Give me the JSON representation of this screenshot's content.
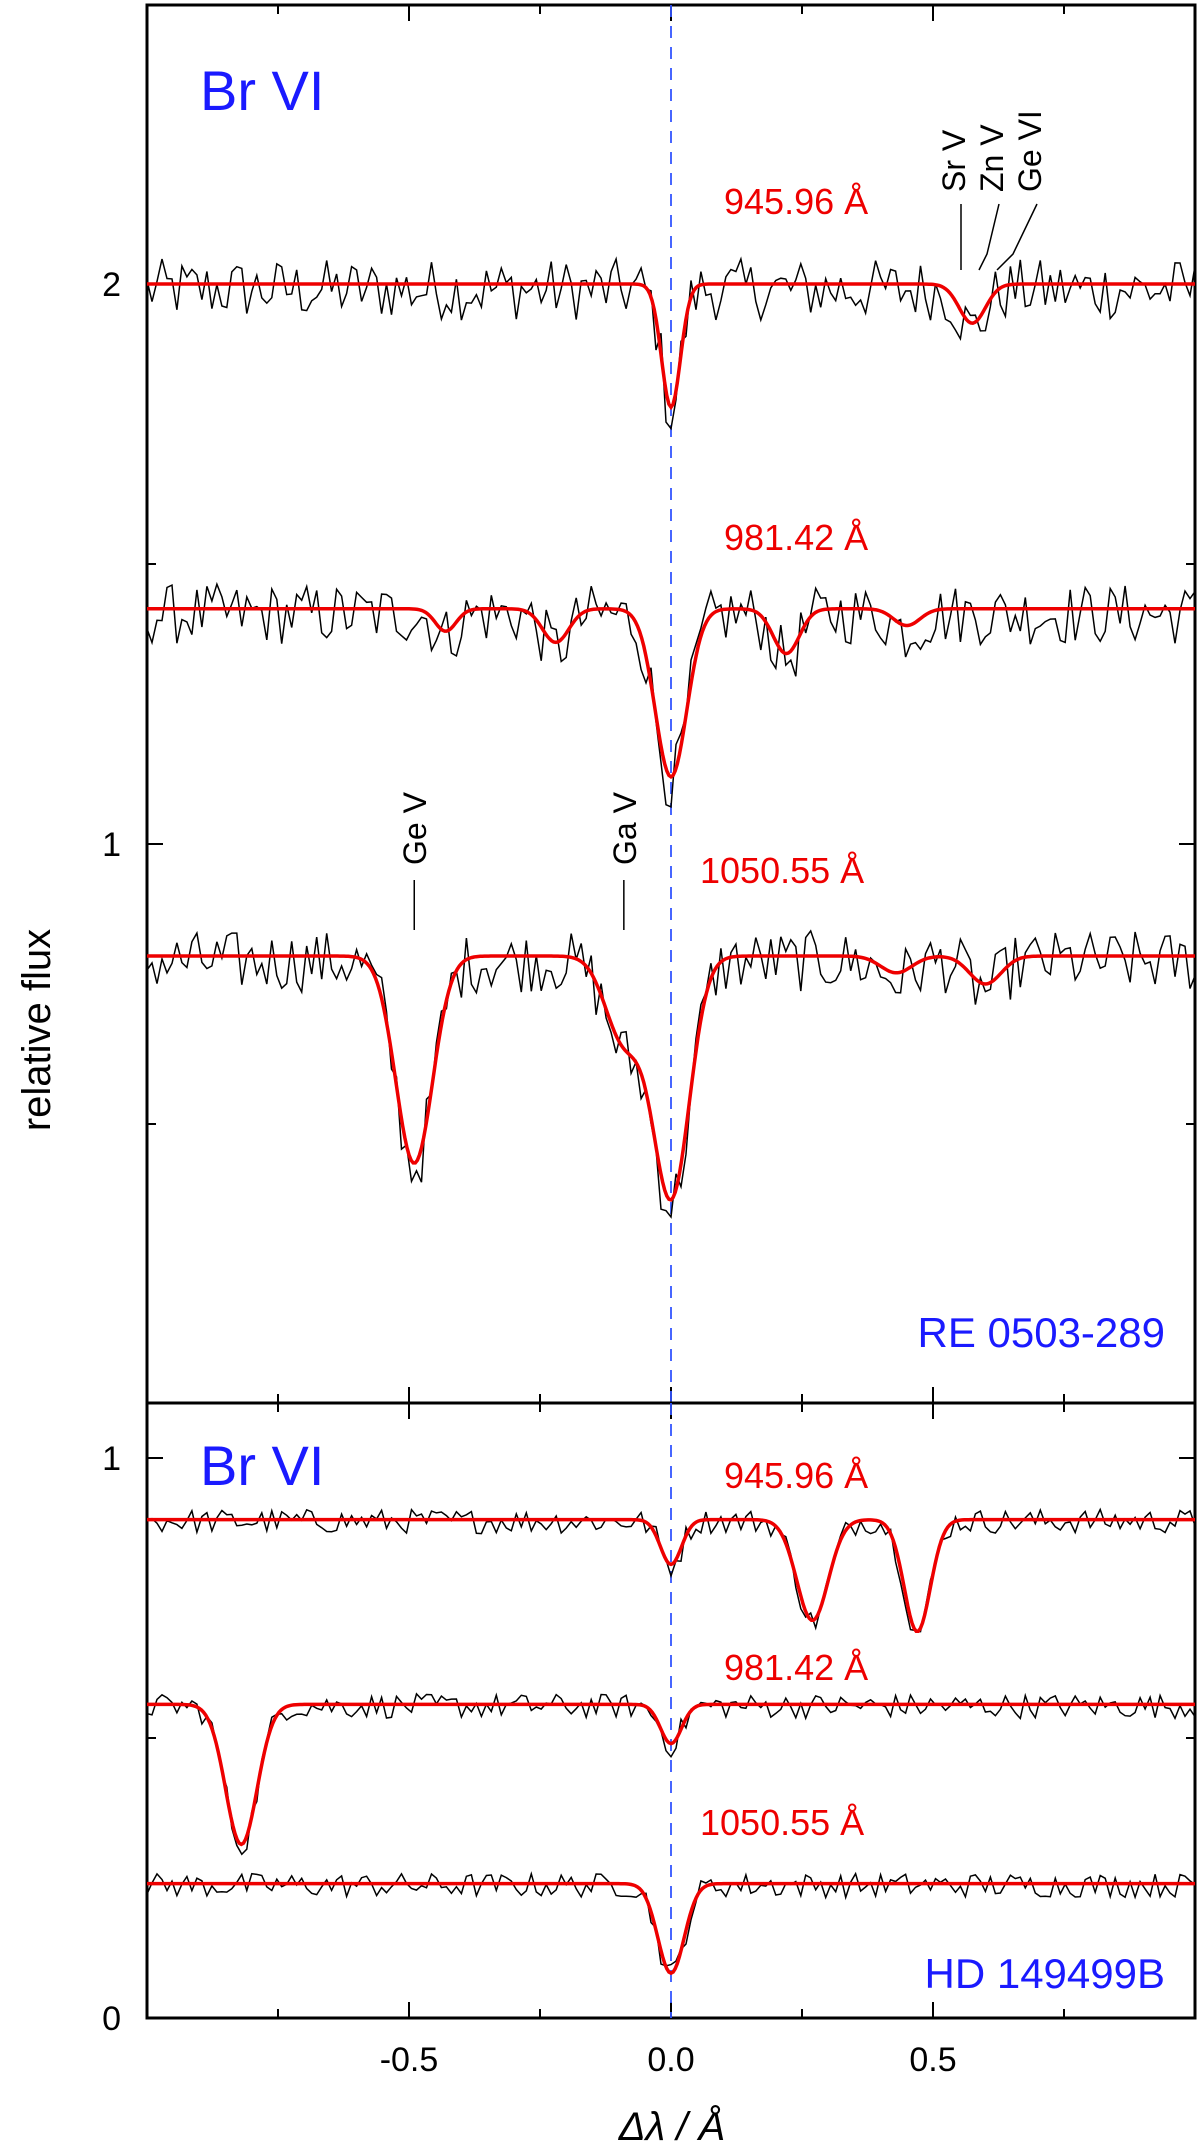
{
  "chart_data": {
    "type": "line",
    "xlabel": "Δλ / Å",
    "ylabel": "relative flux",
    "xlim": [
      -1.0,
      1.0
    ],
    "x_ticks": [
      -0.5,
      0.0,
      0.5
    ],
    "x_tick_labels": [
      "-0.5",
      "0.0",
      "0.5"
    ],
    "grid": false,
    "center_line_x": 0.0,
    "panels": [
      {
        "id": "top",
        "star": "RE 0503-289",
        "ion": "Br VI",
        "ylim": [
          0.0,
          2.5
        ],
        "y_ticks": [
          1,
          2
        ],
        "y_tick_labels": [
          "1",
          "2"
        ],
        "minor_y_ticks": [
          0.5,
          1.5
        ],
        "spectra": [
          {
            "wavelength": "945.96 Å",
            "continuum": 2.0,
            "lines": [
              {
                "x": 0.0,
                "depth": 0.22,
                "width": 0.018
              },
              {
                "x": 0.575,
                "depth": 0.07,
                "width": 0.025
              }
            ],
            "identifications": [
              "Sr V",
              "Zn V",
              "Ge VI"
            ]
          },
          {
            "wavelength": "981.42 Å",
            "continuum": 1.42,
            "lines": [
              {
                "x": 0.0,
                "depth": 0.3,
                "width": 0.03
              },
              {
                "x": -0.43,
                "depth": 0.04,
                "width": 0.02
              },
              {
                "x": -0.22,
                "depth": 0.06,
                "width": 0.025
              },
              {
                "x": 0.22,
                "depth": 0.08,
                "width": 0.025
              },
              {
                "x": 0.45,
                "depth": 0.03,
                "width": 0.025
              }
            ]
          },
          {
            "wavelength": "1050.55 Å",
            "continuum": 0.8,
            "lines": [
              {
                "x": 0.0,
                "depth": 0.43,
                "width": 0.035
              },
              {
                "x": -0.49,
                "depth": 0.37,
                "width": 0.035
              },
              {
                "x": -0.09,
                "depth": 0.15,
                "width": 0.035
              },
              {
                "x": 0.43,
                "depth": 0.03,
                "width": 0.03
              },
              {
                "x": 0.6,
                "depth": 0.05,
                "width": 0.03
              }
            ],
            "identifications": [
              {
                "label": "Ge V",
                "x": -0.49
              },
              {
                "label": "Ga V",
                "x": -0.09
              }
            ]
          }
        ]
      },
      {
        "id": "bottom",
        "star": "HD 149499B",
        "ion": "Br VI",
        "ylim": [
          0.0,
          1.1
        ],
        "y_ticks": [
          0,
          1
        ],
        "y_tick_labels": [
          "0",
          "1"
        ],
        "minor_y_ticks": [
          0.5
        ],
        "spectra": [
          {
            "wavelength": "945.96 Å",
            "continuum": 0.89,
            "lines": [
              {
                "x": 0.0,
                "depth": 0.08,
                "width": 0.02
              },
              {
                "x": 0.27,
                "depth": 0.18,
                "width": 0.03
              },
              {
                "x": 0.47,
                "depth": 0.2,
                "width": 0.025
              }
            ]
          },
          {
            "wavelength": "981.42 Å",
            "continuum": 0.56,
            "lines": [
              {
                "x": 0.0,
                "depth": 0.07,
                "width": 0.02
              },
              {
                "x": -0.82,
                "depth": 0.25,
                "width": 0.03
              }
            ]
          },
          {
            "wavelength": "1050.55 Å",
            "continuum": 0.24,
            "lines": [
              {
                "x": 0.0,
                "depth": 0.16,
                "width": 0.025
              }
            ]
          }
        ]
      }
    ]
  }
}
